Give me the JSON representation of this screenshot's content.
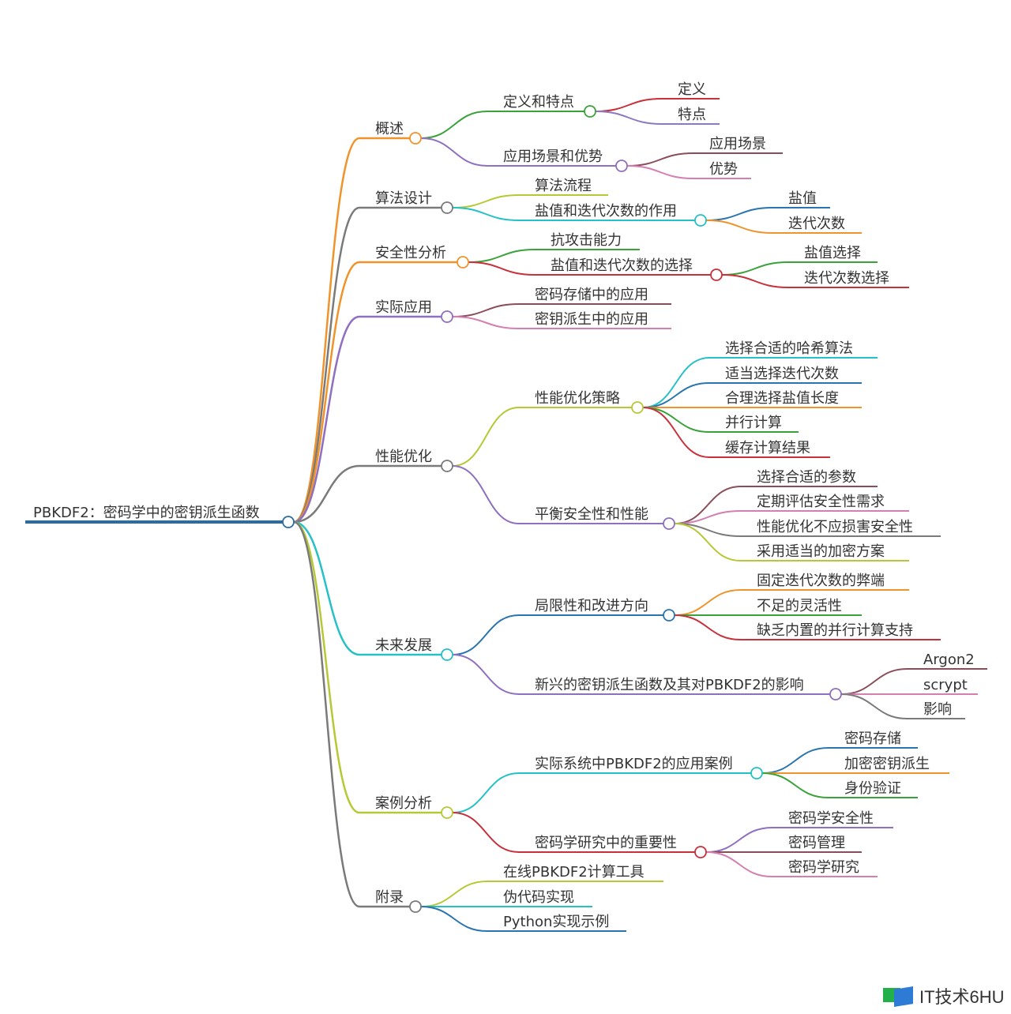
{
  "root": {
    "label": "PBKDF2：密码学中的密钥派生函数",
    "color": "#2b6ca3",
    "children": [
      {
        "label": "概述",
        "color": "#f0932b",
        "children": [
          {
            "label": "定义和特点",
            "color": "#3aa23a",
            "children": [
              {
                "label": "定义",
                "color": "#c8303a"
              },
              {
                "label": "特点",
                "color": "#8e78c0"
              }
            ]
          },
          {
            "label": "应用场景和优势",
            "color": "#8e6fc0",
            "children": [
              {
                "label": "应用场景",
                "color": "#8a4e5a"
              },
              {
                "label": "优势",
                "color": "#d47fb0"
              }
            ]
          }
        ]
      },
      {
        "label": "算法设计",
        "color": "#7a7a7a",
        "children": [
          {
            "label": "算法流程",
            "color": "#b5c934"
          },
          {
            "label": "盐值和迭代次数的作用",
            "color": "#26c0c7",
            "children": [
              {
                "label": "盐值",
                "color": "#2a74b0"
              },
              {
                "label": "迭代次数",
                "color": "#f0932b"
              }
            ]
          }
        ]
      },
      {
        "label": "安全性分析",
        "color": "#f0932b",
        "children": [
          {
            "label": "抗攻击能力",
            "color": "#3aa23a"
          },
          {
            "label": "盐值和迭代次数的选择",
            "color": "#c8303a",
            "children": [
              {
                "label": "盐值选择",
                "color": "#3aa23a"
              },
              {
                "label": "迭代次数选择",
                "color": "#c8303a"
              }
            ]
          }
        ]
      },
      {
        "label": "实际应用",
        "color": "#8e6fc0",
        "children": [
          {
            "label": "密码存储中的应用",
            "color": "#8a4e5a"
          },
          {
            "label": "密钥派生中的应用",
            "color": "#d47fb0"
          }
        ]
      },
      {
        "label": "性能优化",
        "color": "#7a7a7a",
        "children": [
          {
            "label": "性能优化策略",
            "color": "#b5c934",
            "children": [
              {
                "label": "选择合适的哈希算法",
                "color": "#26c0c7"
              },
              {
                "label": "适当选择迭代次数",
                "color": "#2a74b0"
              },
              {
                "label": "合理选择盐值长度",
                "color": "#f0932b"
              },
              {
                "label": "并行计算",
                "color": "#3aa23a"
              },
              {
                "label": "缓存计算结果",
                "color": "#c8303a"
              }
            ]
          },
          {
            "label": "平衡安全性和性能",
            "color": "#8e6fc0",
            "children": [
              {
                "label": "选择合适的参数",
                "color": "#8a4e5a"
              },
              {
                "label": "定期评估安全性需求",
                "color": "#d47fb0"
              },
              {
                "label": "性能优化不应损害安全性",
                "color": "#7a7a7a"
              },
              {
                "label": "采用适当的加密方案",
                "color": "#b5c934"
              }
            ]
          }
        ]
      },
      {
        "label": "未来发展",
        "color": "#26c0c7",
        "children": [
          {
            "label": "局限性和改进方向",
            "color": "#2a74b0",
            "children": [
              {
                "label": "固定迭代次数的弊端",
                "color": "#f0932b"
              },
              {
                "label": "不足的灵活性",
                "color": "#3aa23a"
              },
              {
                "label": "缺乏内置的并行计算支持",
                "color": "#c8303a"
              }
            ]
          },
          {
            "label": "新兴的密钥派生函数及其对PBKDF2的影响",
            "color": "#8e6fc0",
            "children": [
              {
                "label": "Argon2",
                "color": "#8a4e5a"
              },
              {
                "label": "scrypt",
                "color": "#d47fb0"
              },
              {
                "label": "影响",
                "color": "#7a7a7a"
              }
            ]
          }
        ]
      },
      {
        "label": "案例分析",
        "color": "#b5c934",
        "children": [
          {
            "label": "实际系统中PBKDF2的应用案例",
            "color": "#26c0c7",
            "children": [
              {
                "label": "密码存储",
                "color": "#2a74b0"
              },
              {
                "label": "加密密钥派生",
                "color": "#f0932b"
              },
              {
                "label": "身份验证",
                "color": "#3aa23a"
              }
            ]
          },
          {
            "label": "密码学研究中的重要性",
            "color": "#c8303a",
            "children": [
              {
                "label": "密码学安全性",
                "color": "#8e6fc0"
              },
              {
                "label": "密码管理",
                "color": "#8a4e5a"
              },
              {
                "label": "密码学研究",
                "color": "#d47fb0"
              }
            ]
          }
        ]
      },
      {
        "label": "附录",
        "color": "#7a7a7a",
        "children": [
          {
            "label": "在线PBKDF2计算工具",
            "color": "#b5c934"
          },
          {
            "label": "伪代码实现",
            "color": "#26c0c7"
          },
          {
            "label": "Python实现示例",
            "color": "#2a74b0"
          }
        ]
      }
    ]
  },
  "watermark": {
    "text": "IT技术6HU",
    "logo_colors": [
      "#22b04b",
      "#2e7bd6"
    ]
  }
}
